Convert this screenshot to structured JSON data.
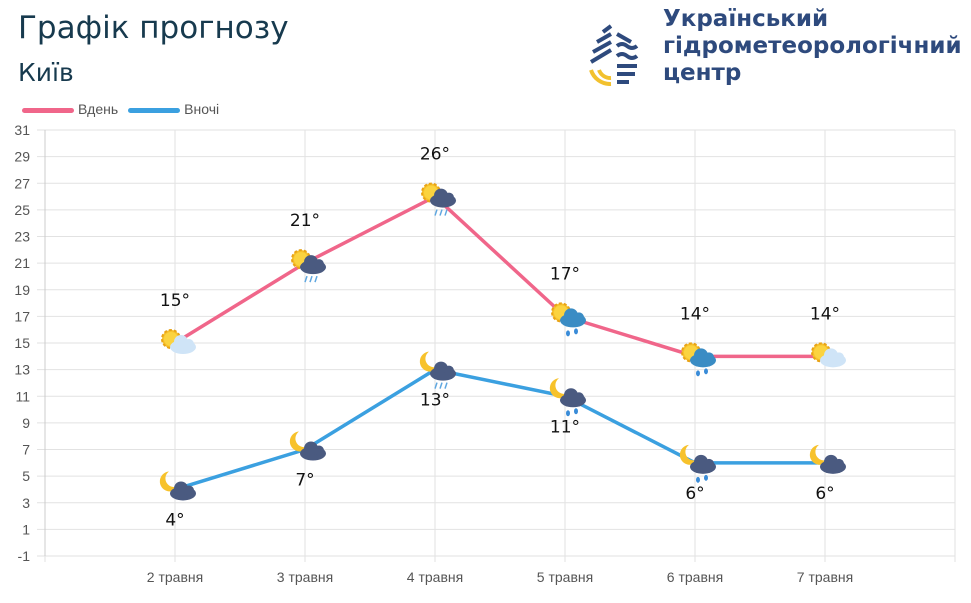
{
  "header": {
    "title": "Графік прогнозу",
    "city": "Київ"
  },
  "org": {
    "lines": [
      "Український",
      "гідрометеорологічний",
      "центр"
    ]
  },
  "chart_data": {
    "type": "line",
    "categories": [
      "2 травня",
      "3 травня",
      "4 травня",
      "5 травня",
      "6 травня",
      "7 травня"
    ],
    "series": [
      {
        "name": "Вдень",
        "color": "#f0668a",
        "values": [
          15,
          21,
          26,
          17,
          14,
          14
        ],
        "labels": [
          "15°",
          "21°",
          "26°",
          "17°",
          "14°",
          "14°"
        ],
        "icons": [
          "sun-partly-cloudy-icon",
          "sun-cloud-rain-icon",
          "sun-cloud-rain-icon",
          "sun-cloud-shower-icon",
          "sun-cloud-shower-icon",
          "sun-partly-cloudy-icon"
        ]
      },
      {
        "name": "Вночі",
        "color": "#3ba0e0",
        "values": [
          4,
          7,
          13,
          11,
          6,
          6
        ],
        "labels": [
          "4°",
          "7°",
          "13°",
          "11°",
          "6°",
          "6°"
        ],
        "icons": [
          "moon-cloud-icon",
          "moon-cloud-icon",
          "moon-cloud-rain-icon",
          "moon-cloud-shower-icon",
          "moon-cloud-shower-icon",
          "moon-cloud-icon"
        ]
      }
    ],
    "yticks": [
      31,
      29,
      27,
      25,
      23,
      21,
      19,
      17,
      15,
      13,
      11,
      9,
      7,
      5,
      3,
      1,
      -1
    ],
    "ylim": [
      -1,
      31
    ],
    "grid": true,
    "legend": "top-left"
  }
}
